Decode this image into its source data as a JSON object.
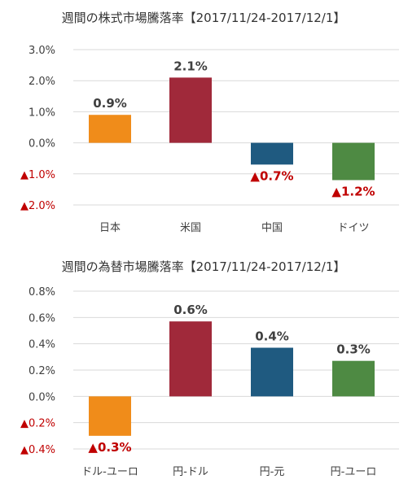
{
  "chart_data": [
    {
      "type": "bar",
      "title": "週間の株式市場騰落率【2017/11/24-2017/12/1】",
      "categories": [
        "日本",
        "米国",
        "中国",
        "ドイツ"
      ],
      "values": [
        0.9,
        2.1,
        -0.7,
        -1.2
      ],
      "value_labels": [
        "0.9%",
        "2.1%",
        "▲0.7%",
        "▲1.2%"
      ],
      "colors": [
        "#f08c1a",
        "#a0293a",
        "#1f5a80",
        "#4e8a43"
      ],
      "ylim": [
        -2.0,
        3.0
      ],
      "yticks": [
        3.0,
        2.0,
        1.0,
        0.0,
        -1.0,
        -2.0
      ],
      "ytick_labels": [
        "3.0%",
        "2.0%",
        "1.0%",
        "0.0%",
        "▲1.0%",
        "▲2.0%"
      ],
      "grid": true,
      "xlabel": "",
      "ylabel": ""
    },
    {
      "type": "bar",
      "title": "週間の為替市場騰落率【2017/11/24-2017/12/1】",
      "categories": [
        "ドル-ユーロ",
        "円-ドル",
        "円-元",
        "円-ユーロ"
      ],
      "values": [
        -0.3,
        0.57,
        0.37,
        0.27
      ],
      "value_labels": [
        "▲0.3%",
        "0.6%",
        "0.4%",
        "0.3%"
      ],
      "colors": [
        "#f08c1a",
        "#a0293a",
        "#1f5a80",
        "#4e8a43"
      ],
      "ylim": [
        -0.4,
        0.8
      ],
      "yticks": [
        0.8,
        0.6,
        0.4,
        0.2,
        0.0,
        -0.2,
        -0.4
      ],
      "ytick_labels": [
        "0.8%",
        "0.6%",
        "0.4%",
        "0.2%",
        "0.0%",
        "▲0.2%",
        "▲0.4%"
      ],
      "grid": true,
      "xlabel": "",
      "ylabel": ""
    }
  ]
}
